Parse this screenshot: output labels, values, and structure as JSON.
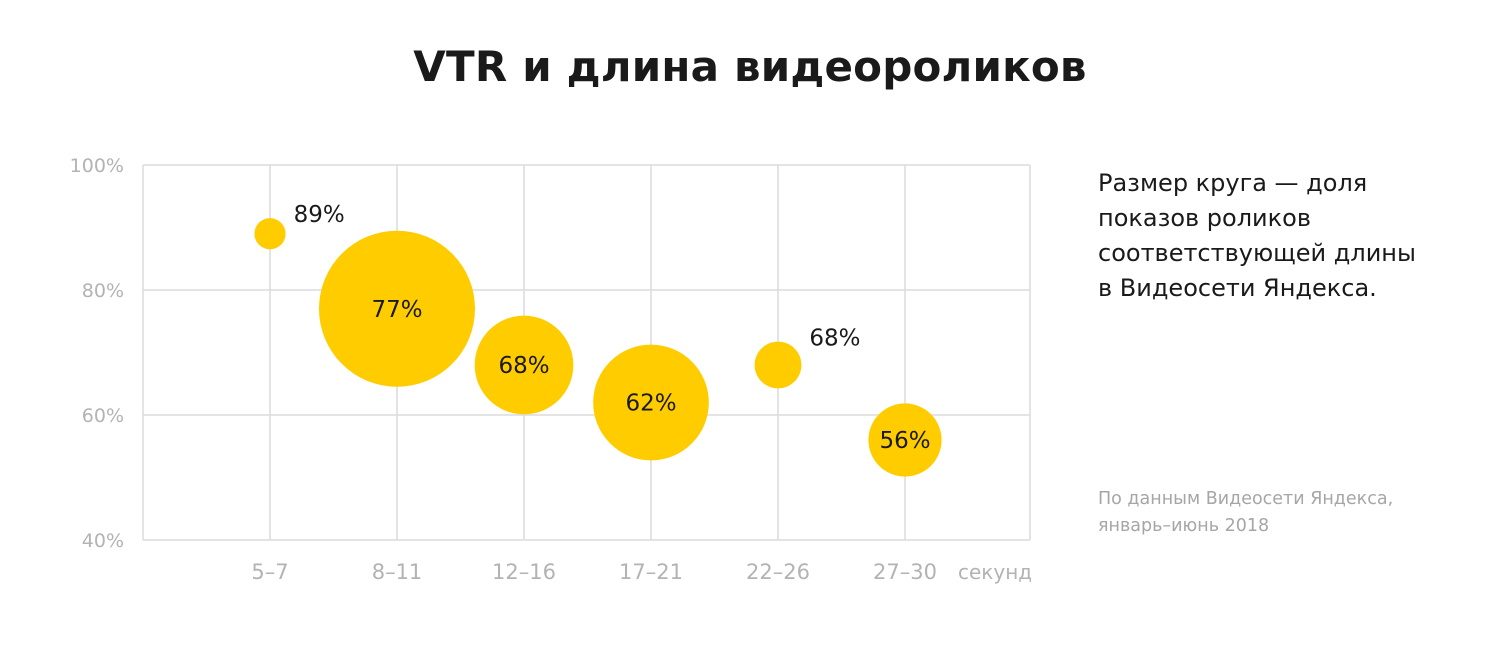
{
  "chart_data": {
    "type": "bubble",
    "title": "VTR и длина видеороликов",
    "xlabel": "секунд",
    "categories": [
      "5–7",
      "8–11",
      "12–16",
      "17–21",
      "22–26",
      "27–30"
    ],
    "y_ticks": [
      "100%",
      "80%",
      "60%",
      "40%"
    ],
    "ylim": [
      40,
      100
    ],
    "grid": true,
    "values": [
      89,
      77,
      68,
      62,
      68,
      56
    ],
    "data_labels": [
      "89%",
      "77%",
      "68%",
      "62%",
      "68%",
      "56%"
    ],
    "bubble_size_share": [
      0.04,
      1.0,
      0.4,
      0.55,
      0.09,
      0.22
    ],
    "color": "#ffcc00"
  },
  "legend_note": {
    "lines": [
      "Размер круга — доля",
      "показов роликов",
      "соответствующей длины",
      "в Видеосети Яндекса."
    ]
  },
  "source_note": {
    "lines": [
      "По данным Видеосети Яндекса,",
      "январь–июнь 2018"
    ]
  }
}
